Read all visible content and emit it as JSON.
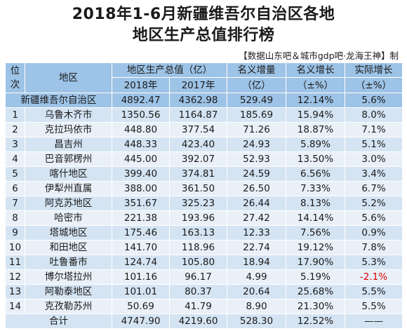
{
  "title_line1": "2018年1-6月新疆维吾尔自治区各地",
  "title_line2": "地区生产总值排行榜",
  "source": "【数据山东吧＆城市gdp吧·龙海王神】制",
  "header": {
    "rank_line1": "位",
    "rank_line2": "次",
    "region": "地区",
    "gdp_group": "地区生产总值（亿）",
    "year2018": "2018年",
    "year2017": "2017年",
    "nominal_increase_line1": "名义增量",
    "nominal_increase_line2": "（亿）",
    "nominal_growth_line1": "名义增长",
    "nominal_growth_line2": "（±%）",
    "real_growth_line1": "实际增长",
    "real_growth_line2": "（±%）"
  },
  "region_total": {
    "region": "新疆维吾尔自治区",
    "gdp2018": "4892.47",
    "gdp2017": "4362.98",
    "increase": "529.49",
    "nominal": "12.14%",
    "real": "5.6%"
  },
  "rows": [
    {
      "rank": "1",
      "region": "乌鲁木齐市",
      "gdp2018": "1350.56",
      "gdp2017": "1164.87",
      "increase": "185.69",
      "nominal": "15.94%",
      "real": "8.0%"
    },
    {
      "rank": "2",
      "region": "克拉玛依市",
      "gdp2018": "448.80",
      "gdp2017": "377.54",
      "increase": "71.26",
      "nominal": "18.87%",
      "real": "7.1%"
    },
    {
      "rank": "3",
      "region": "昌吉州",
      "gdp2018": "448.33",
      "gdp2017": "423.40",
      "increase": "24.93",
      "nominal": "5.89%",
      "real": "5.1%"
    },
    {
      "rank": "4",
      "region": "巴音郭楞州",
      "gdp2018": "445.00",
      "gdp2017": "392.07",
      "increase": "52.93",
      "nominal": "13.50%",
      "real": "3.0%"
    },
    {
      "rank": "5",
      "region": "喀什地区",
      "gdp2018": "399.40",
      "gdp2017": "374.81",
      "increase": "24.59",
      "nominal": "6.56%",
      "real": "3.4%"
    },
    {
      "rank": "6",
      "region": "伊犁州直属",
      "gdp2018": "388.00",
      "gdp2017": "361.50",
      "increase": "26.50",
      "nominal": "7.33%",
      "real": "6.7%"
    },
    {
      "rank": "7",
      "region": "阿克苏地区",
      "gdp2018": "351.67",
      "gdp2017": "325.23",
      "increase": "26.44",
      "nominal": "8.13%",
      "real": "5.2%"
    },
    {
      "rank": "8",
      "region": "哈密市",
      "gdp2018": "221.38",
      "gdp2017": "193.96",
      "increase": "27.42",
      "nominal": "14.14%",
      "real": "5.6%"
    },
    {
      "rank": "9",
      "region": "塔城地区",
      "gdp2018": "175.46",
      "gdp2017": "163.13",
      "increase": "12.33",
      "nominal": "7.56%",
      "real": "0.9%"
    },
    {
      "rank": "10",
      "region": "和田地区",
      "gdp2018": "141.70",
      "gdp2017": "118.96",
      "increase": "22.74",
      "nominal": "19.12%",
      "real": "7.8%"
    },
    {
      "rank": "11",
      "region": "吐鲁番市",
      "gdp2018": "124.74",
      "gdp2017": "105.80",
      "increase": "18.94",
      "nominal": "17.90%",
      "real": "5.3%"
    },
    {
      "rank": "12",
      "region": "博尔塔拉州",
      "gdp2018": "101.16",
      "gdp2017": "96.17",
      "increase": "4.99",
      "nominal": "5.19%",
      "real": "-2.1%"
    },
    {
      "rank": "13",
      "region": "阿勒泰地区",
      "gdp2018": "101.01",
      "gdp2017": "80.37",
      "increase": "20.64",
      "nominal": "25.68%",
      "real": "5.5%"
    },
    {
      "rank": "14",
      "region": "克孜勒苏州",
      "gdp2018": "50.69",
      "gdp2017": "41.79",
      "increase": "8.90",
      "nominal": "21.30%",
      "real": "5.5%"
    }
  ],
  "sum_row": {
    "label": "合计",
    "gdp2018": "4747.90",
    "gdp2017": "4219.60",
    "increase": "528.30",
    "nominal": "12.52%",
    "real": "——"
  },
  "colors": {
    "header_bg": "#9dc3e6",
    "row_odd": "#d5e4f3",
    "row_even": "#e9f0f8",
    "negative": "#e00000"
  }
}
